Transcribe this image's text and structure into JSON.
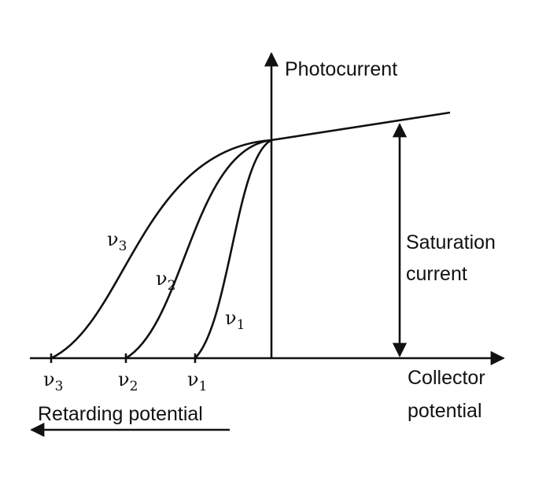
{
  "axes": {
    "y_label": "Photocurrent",
    "x_label": [
      "Collector",
      "potential"
    ],
    "retarding": "Retarding potential"
  },
  "saturation": [
    "Saturation",
    "current"
  ],
  "curves": [
    {
      "symbol": "ν",
      "subscript": "3"
    },
    {
      "symbol": "ν",
      "subscript": "2"
    },
    {
      "symbol": "ν",
      "subscript": "1"
    }
  ],
  "stopping": [
    {
      "symbol": "ν",
      "subscript": "3"
    },
    {
      "symbol": "ν",
      "subscript": "2"
    },
    {
      "symbol": "ν",
      "subscript": "1"
    }
  ]
}
